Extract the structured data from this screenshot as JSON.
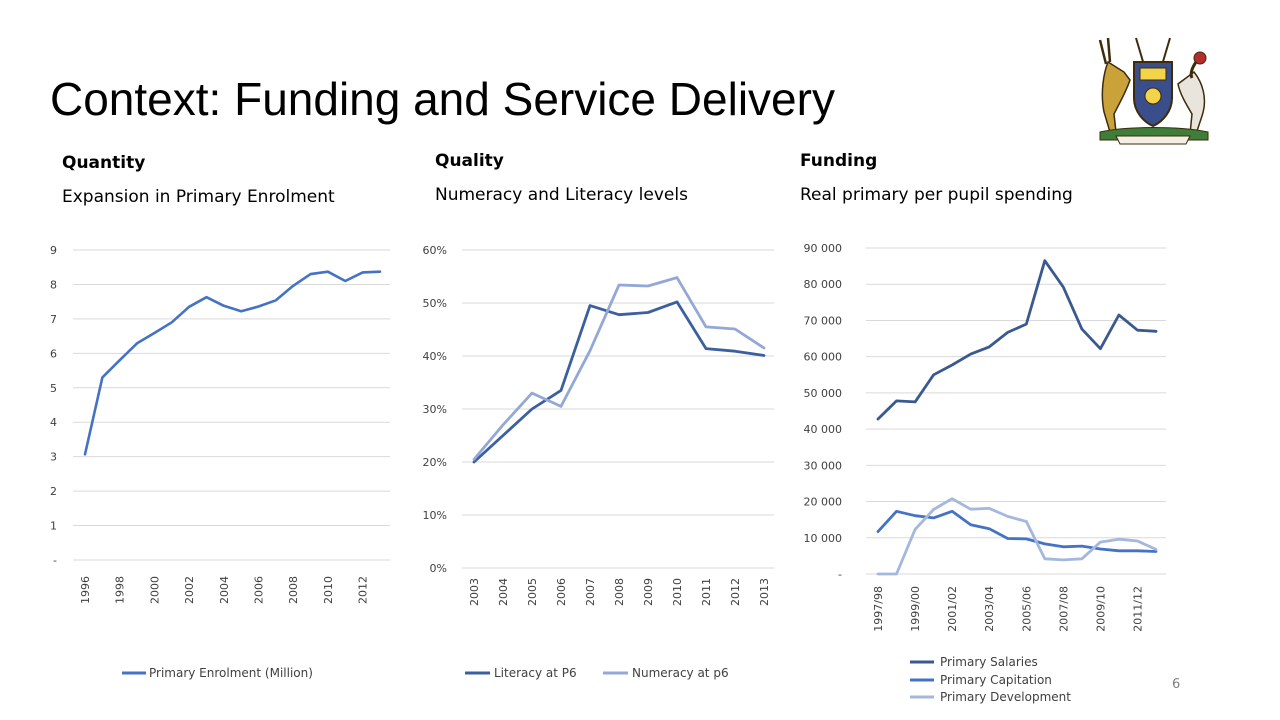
{
  "slide": {
    "title": "Context: Funding and Service Delivery",
    "page_number": "6"
  },
  "panels": [
    {
      "heading": "Quantity",
      "subheading": "Expansion in Primary Enrolment"
    },
    {
      "heading": "Quality",
      "subheading": "Numeracy and Literacy levels"
    },
    {
      "heading": "Funding",
      "subheading": "Real primary per pupil spending"
    }
  ],
  "colors": {
    "enrolment": "#4472c4",
    "literacy": "#3c5f9f",
    "numeracy": "#93a8d6",
    "salaries": "#3a5a8f",
    "capitation": "#4472c4",
    "development": "#a4b7dc",
    "grid": "#d9d9d9"
  },
  "chart_data": [
    {
      "type": "line",
      "title": "",
      "xlabel": "",
      "ylabel": "",
      "ylim": [
        0,
        9
      ],
      "y_ticks": [
        0,
        1,
        2,
        3,
        4,
        5,
        6,
        7,
        8,
        9
      ],
      "y_tick_labels": [
        "-",
        "1",
        "2",
        "3",
        "4",
        "5",
        "6",
        "7",
        "8",
        "9"
      ],
      "x": [
        1996,
        1997,
        1998,
        1999,
        2000,
        2001,
        2002,
        2003,
        2004,
        2005,
        2006,
        2007,
        2008,
        2009,
        2010,
        2011,
        2012,
        2013
      ],
      "x_tick_labels": [
        "1996",
        "1998",
        "2000",
        "2002",
        "2004",
        "2006",
        "2008",
        "2010",
        "2012"
      ],
      "grid": true,
      "legend_position": "bottom",
      "series": [
        {
          "name": "Primary Enrolment (Million)",
          "values": [
            3.07,
            5.3,
            5.8,
            6.29,
            6.59,
            6.9,
            7.35,
            7.63,
            7.38,
            7.22,
            7.36,
            7.54,
            7.96,
            8.3,
            8.37,
            8.1,
            8.35,
            8.37
          ]
        }
      ]
    },
    {
      "type": "line",
      "title": "",
      "xlabel": "",
      "ylabel": "",
      "ylim": [
        0,
        0.6
      ],
      "y_ticks": [
        0,
        0.1,
        0.2,
        0.3,
        0.4,
        0.5,
        0.6
      ],
      "y_tick_labels": [
        "0%",
        "10%",
        "20%",
        "30%",
        "40%",
        "50%",
        "60%"
      ],
      "x": [
        "2003",
        "2004",
        "2005",
        "2006",
        "2007",
        "2008",
        "2009",
        "2010",
        "2011",
        "2012",
        "2013"
      ],
      "grid": true,
      "legend_position": "bottom",
      "series": [
        {
          "name": "Literacy at P6",
          "values": [
            0.2,
            0.25,
            0.3,
            0.335,
            0.495,
            0.478,
            0.482,
            0.502,
            0.414,
            0.409,
            0.401
          ]
        },
        {
          "name": "Numeracy at p6",
          "values": [
            0.205,
            0.27,
            0.33,
            0.305,
            0.41,
            0.534,
            0.532,
            0.548,
            0.455,
            0.451,
            0.415
          ]
        }
      ]
    },
    {
      "type": "line",
      "title": "",
      "xlabel": "",
      "ylabel": "",
      "ylim": [
        0,
        90000
      ],
      "y_ticks": [
        0,
        10000,
        20000,
        30000,
        40000,
        50000,
        60000,
        70000,
        80000,
        90000
      ],
      "y_tick_labels": [
        "-",
        "10 000",
        "20 000",
        "30 000",
        "40 000",
        "50 000",
        "60 000",
        "70 000",
        "80 000",
        "90 000"
      ],
      "x": [
        "1997/98",
        "1998/99",
        "1999/00",
        "2000/01",
        "2001/02",
        "2002/03",
        "2003/04",
        "2004/05",
        "2005/06",
        "2006/07",
        "2007/08",
        "2008/09",
        "2009/10",
        "2010/11",
        "2011/12",
        "2012/13"
      ],
      "x_tick_labels": [
        "1997/98",
        "1999/00",
        "2001/02",
        "2003/04",
        "2005/06",
        "2007/08",
        "2009/10",
        "2011/12"
      ],
      "grid": true,
      "legend_position": "bottom",
      "series": [
        {
          "name": "Primary Salaries",
          "values": [
            42800,
            47800,
            47500,
            55000,
            57700,
            60700,
            62700,
            66700,
            69000,
            86500,
            79200,
            67600,
            62200,
            71500,
            67300,
            67000
          ]
        },
        {
          "name": "Primary Capitation",
          "values": [
            11700,
            17300,
            16100,
            15500,
            17300,
            13600,
            12500,
            9800,
            9700,
            8300,
            7500,
            7700,
            6900,
            6400,
            6400,
            6200
          ]
        },
        {
          "name": "Primary Development",
          "values": [
            0,
            0,
            12300,
            17800,
            20800,
            17900,
            18100,
            15900,
            14500,
            4200,
            3900,
            4200,
            8800,
            9600,
            9100,
            6800
          ]
        }
      ]
    }
  ]
}
